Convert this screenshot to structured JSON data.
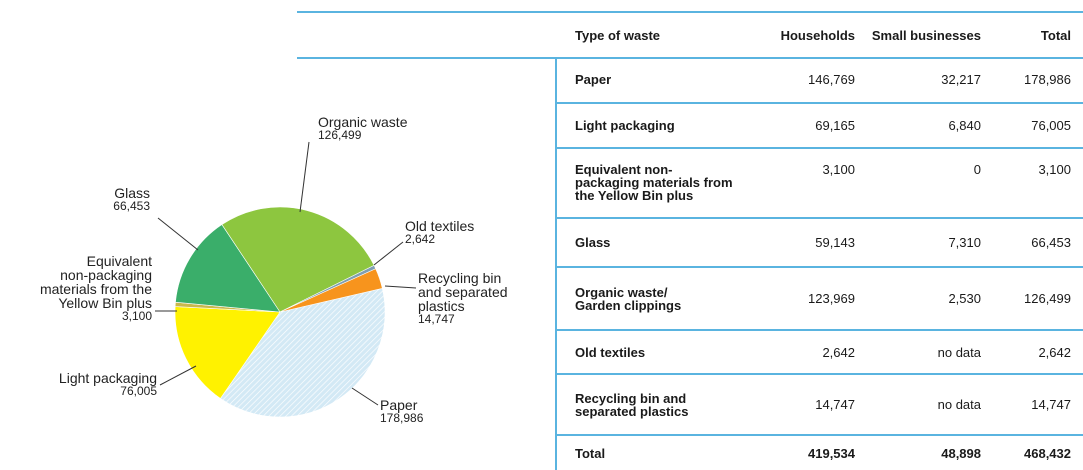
{
  "chart_data": {
    "type": "pie",
    "categories": [
      "Paper",
      "Light packaging",
      "Equivalent\nnon-packaging\nmaterials from the\nYellow Bin plus",
      "Glass",
      "Organic waste",
      "Old textiles",
      "Recycling bin\nand separated\nplastics"
    ],
    "values": [
      178986,
      76005,
      3100,
      66453,
      126499,
      2642,
      14747
    ],
    "value_labels": [
      "178,986",
      "76,005",
      "3,100",
      "66,453",
      "126,499",
      "2,642",
      "14,747"
    ],
    "colors": [
      "#d3e9f5",
      "#fff200",
      "#c9b84c",
      "#3aae6a",
      "#8dc63f",
      "#7f9fb3",
      "#f7941d"
    ]
  },
  "table": {
    "columns": [
      "Type of waste",
      "Households",
      "Small businesses",
      "Total"
    ],
    "rows": [
      [
        "Paper",
        "146,769",
        "32,217",
        "178,986"
      ],
      [
        "Light packaging",
        "69,165",
        "6,840",
        "76,005"
      ],
      [
        "Equivalent non-\npackaging materials from\nthe Yellow Bin plus",
        "3,100",
        "0",
        "3,100"
      ],
      [
        "Glass",
        "59,143",
        "7,310",
        "66,453"
      ],
      [
        "Organic waste/\nGarden clippings",
        "123,969",
        "2,530",
        "126,499"
      ],
      [
        "Old textiles",
        "2,642",
        "no data",
        "2,642"
      ],
      [
        "Recycling bin and\nseparated plastics",
        "14,747",
        "no data",
        "14,747"
      ],
      [
        "Total",
        "419,534",
        "48,898",
        "468,432"
      ]
    ]
  }
}
